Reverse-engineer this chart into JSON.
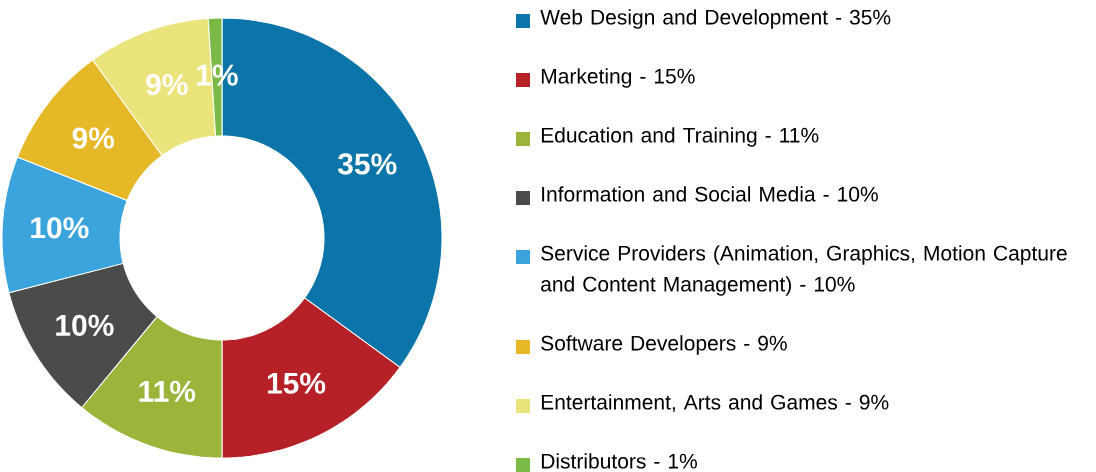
{
  "chart_data": {
    "type": "donut",
    "categories": [
      "Web Design and Development - 35%",
      "Marketing - 15%",
      "Education and Training - 11%",
      "Information and Social Media - 10%",
      "Service Providers (Animation, Graphics, Motion Capture and Content Management) - 10%",
      "Software Developers - 9%",
      "Entertainment, Arts and Games - 9%",
      "Distributors - 1%"
    ],
    "values": [
      35,
      15,
      11,
      10,
      10,
      9,
      9,
      1
    ],
    "value_labels": [
      "35%",
      "15%",
      "11%",
      "10%",
      "10%",
      "9%",
      "9%",
      "1%"
    ],
    "colors": [
      "#0b74a9",
      "#b52126",
      "#9bb53b",
      "#4a4c4a",
      "#3ba4dc",
      "#e4b826",
      "#ebe47c",
      "#7cba48"
    ],
    "legend": "right"
  }
}
